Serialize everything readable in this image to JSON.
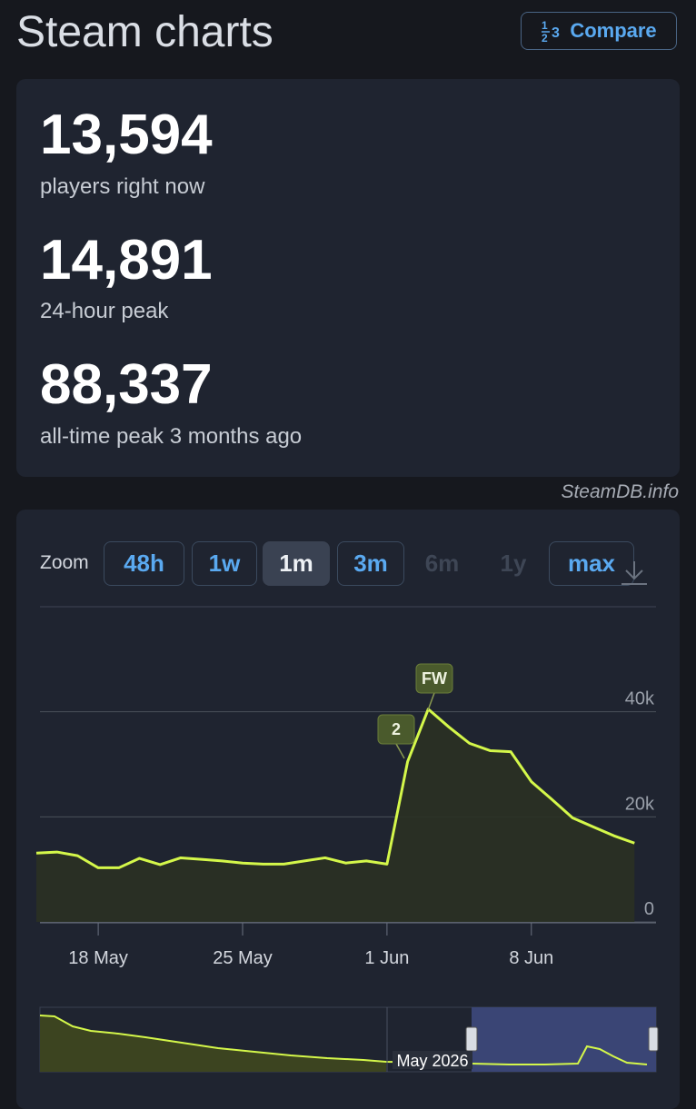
{
  "header": {
    "title": "Steam charts",
    "compare": "Compare"
  },
  "stats": [
    {
      "value": "13,594",
      "label": "players right now"
    },
    {
      "value": "14,891",
      "label": "24-hour peak"
    },
    {
      "value": "88,337",
      "label": "all-time peak 3 months ago"
    }
  ],
  "source": "SteamDB.info",
  "zoom": {
    "label": "Zoom",
    "options": [
      "48h",
      "1w",
      "1m",
      "3m",
      "6m",
      "1y",
      "max"
    ]
  },
  "navigator": {
    "label": "May 2026"
  },
  "chart_data": {
    "type": "line",
    "categories": [
      null,
      null,
      null,
      "18 May",
      null,
      null,
      null,
      null,
      null,
      null,
      "25 May",
      null,
      null,
      null,
      null,
      null,
      null,
      "1 Jun",
      null,
      null,
      null,
      null,
      null,
      null,
      "8 Jun",
      null,
      null,
      null,
      null,
      null
    ],
    "series": [
      {
        "color": "#d4f74a",
        "values": [
          13100,
          13300,
          12600,
          10300,
          10300,
          12100,
          10900,
          12200,
          11900,
          11600,
          11200,
          11000,
          11000,
          11600,
          12200,
          11200,
          11600,
          11000,
          30500,
          40500,
          37100,
          34000,
          32600,
          32400,
          26700,
          23300,
          19800,
          18100,
          16400,
          15000
        ]
      }
    ],
    "annotations": [
      "2",
      "FW"
    ],
    "ylim": [
      0,
      60000
    ],
    "yticks": [
      0,
      {
        "value": 20000,
        "label": "20k"
      },
      {
        "value": 40000,
        "label": "40k"
      }
    ],
    "grid": true
  }
}
